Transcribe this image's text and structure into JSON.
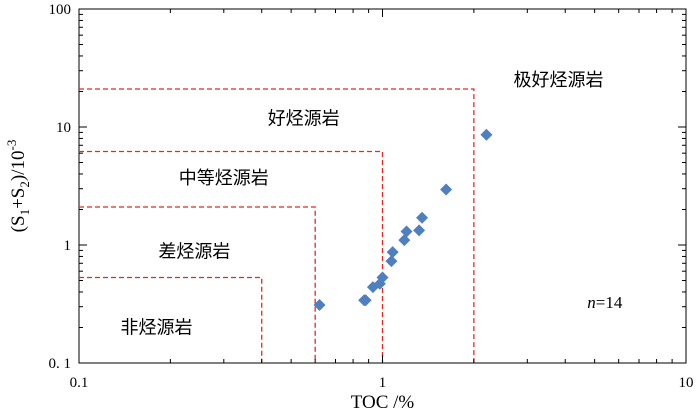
{
  "chart_data": {
    "type": "scatter",
    "title": "",
    "xlabel": "TOC /%",
    "ylabel": {
      "text": "(S",
      "sub1": "1",
      "plus": "+S",
      "sub2": "2",
      "close": ")/10",
      "sup": "-3"
    },
    "x_scale": "log",
    "y_scale": "log",
    "xlim": [
      0.1,
      10
    ],
    "ylim": [
      0.1,
      100
    ],
    "x_ticks": [
      {
        "value": 0.1,
        "label": "0.1"
      },
      {
        "value": 1,
        "label": "1"
      },
      {
        "value": 10,
        "label": "10"
      }
    ],
    "y_ticks": [
      {
        "value": 0.1,
        "label": "0. 1"
      },
      {
        "value": 1,
        "label": "1"
      },
      {
        "value": 10,
        "label": "10"
      },
      {
        "value": 100,
        "label": "100"
      }
    ],
    "grid": false,
    "marker": {
      "shape": "diamond",
      "color": "#4f7fbf"
    },
    "boundary_color": "#e8281e",
    "points": [
      {
        "x": 0.62,
        "y": 0.31
      },
      {
        "x": 0.87,
        "y": 0.34
      },
      {
        "x": 0.88,
        "y": 0.34
      },
      {
        "x": 0.93,
        "y": 0.44
      },
      {
        "x": 0.98,
        "y": 0.47
      },
      {
        "x": 1.0,
        "y": 0.53
      },
      {
        "x": 1.07,
        "y": 0.73
      },
      {
        "x": 1.08,
        "y": 0.87
      },
      {
        "x": 1.18,
        "y": 1.1
      },
      {
        "x": 1.2,
        "y": 1.3
      },
      {
        "x": 1.32,
        "y": 1.33
      },
      {
        "x": 1.35,
        "y": 1.7
      },
      {
        "x": 1.62,
        "y": 2.95
      },
      {
        "x": 2.2,
        "y": 8.6
      }
    ],
    "boundaries": [
      {
        "x": 0.4,
        "y": 0.53
      },
      {
        "x": 0.6,
        "y": 2.1
      },
      {
        "x": 1.0,
        "y": 6.2
      },
      {
        "x": 2.0,
        "y": 21
      }
    ],
    "regions": [
      {
        "label": "非烃源岩",
        "x": 0.18,
        "y": 0.2
      },
      {
        "label": "差烃源岩",
        "x": 0.24,
        "y": 0.88
      },
      {
        "label": "中等烃源岩",
        "x": 0.3,
        "y": 3.7
      },
      {
        "label": "好烃源岩",
        "x": 0.55,
        "y": 11.8
      },
      {
        "label": "极好烃源岩",
        "x": 3.8,
        "y": 25
      }
    ],
    "annotation": {
      "italic": "n",
      "rest": "=14",
      "x": 5.4,
      "y": 0.33
    }
  }
}
